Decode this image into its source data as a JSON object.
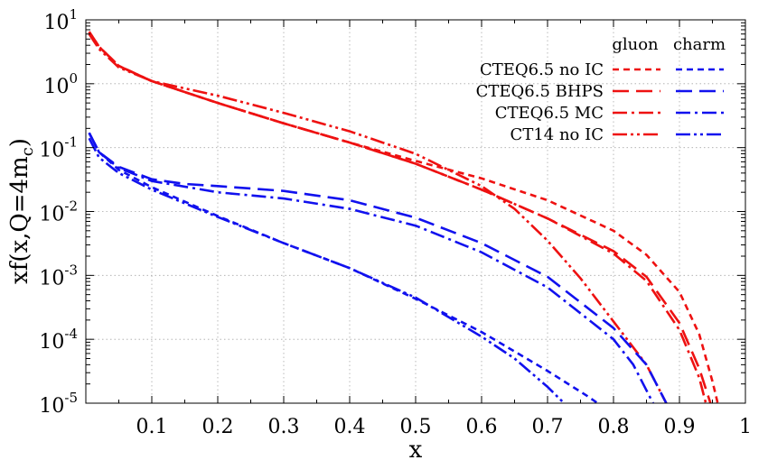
{
  "chart_data": {
    "type": "line",
    "xlabel": "x",
    "ylabel": "xf(x,Q=4m_c)",
    "ylabel_parts": {
      "main": "xf(x,Q=4m",
      "sub": "c",
      "close": ")"
    },
    "xlim": [
      0,
      1
    ],
    "ylim": [
      1e-05,
      10
    ],
    "y_scale": "log",
    "grid": true,
    "x_ticks": [
      0.1,
      0.2,
      0.3,
      0.4,
      0.5,
      0.6,
      0.7,
      0.8,
      0.9,
      1
    ],
    "x_tick_labels": [
      "0.1",
      "0.2",
      "0.3",
      "0.4",
      "0.5",
      "0.6",
      "0.7",
      "0.8",
      "0.9",
      "1"
    ],
    "y_ticks": [
      {
        "value": 1e-05,
        "base": "10",
        "exp": "-5"
      },
      {
        "value": 0.0001,
        "base": "10",
        "exp": "-4"
      },
      {
        "value": 0.001,
        "base": "10",
        "exp": "-3"
      },
      {
        "value": 0.01,
        "base": "10",
        "exp": "-2"
      },
      {
        "value": 0.1,
        "base": "10",
        "exp": "-1"
      },
      {
        "value": 1,
        "base": "10",
        "exp": "0"
      },
      {
        "value": 10,
        "base": "10",
        "exp": "1"
      }
    ],
    "legend": {
      "placement": "top-right",
      "column_headers": [
        "gluon",
        "charm"
      ],
      "rows": [
        {
          "label": "CTEQ6.5 no IC",
          "style": "short-dash"
        },
        {
          "label": "CTEQ6.5 BHPS",
          "style": "long-dash"
        },
        {
          "label": "CTEQ6.5 MC",
          "style": "dash-dot"
        },
        {
          "label": "CT14 no IC",
          "style": "dash-dot-dot"
        }
      ]
    },
    "colors": {
      "gluon": "#ee1111",
      "charm": "#1111ee"
    },
    "series": [
      {
        "parton": "gluon",
        "set": "CTEQ6.5 no IC",
        "style": "short-dash",
        "points": [
          [
            0.005,
            6.5
          ],
          [
            0.02,
            3.8
          ],
          [
            0.05,
            1.9
          ],
          [
            0.1,
            1.1
          ],
          [
            0.2,
            0.5
          ],
          [
            0.3,
            0.24
          ],
          [
            0.4,
            0.12
          ],
          [
            0.5,
            0.062
          ],
          [
            0.6,
            0.033
          ],
          [
            0.7,
            0.015
          ],
          [
            0.8,
            0.005
          ],
          [
            0.85,
            0.0021
          ],
          [
            0.9,
            0.00055
          ],
          [
            0.93,
            0.00012
          ],
          [
            0.95,
            2.2e-05
          ],
          [
            0.958,
            1e-05
          ]
        ]
      },
      {
        "parton": "gluon",
        "set": "CTEQ6.5 BHPS",
        "style": "long-dash",
        "points": [
          [
            0.005,
            6.5
          ],
          [
            0.02,
            3.8
          ],
          [
            0.05,
            1.9
          ],
          [
            0.1,
            1.1
          ],
          [
            0.2,
            0.5
          ],
          [
            0.3,
            0.24
          ],
          [
            0.4,
            0.12
          ],
          [
            0.5,
            0.056
          ],
          [
            0.6,
            0.022
          ],
          [
            0.7,
            0.0078
          ],
          [
            0.8,
            0.0024
          ],
          [
            0.85,
            0.00095
          ],
          [
            0.9,
            0.00018
          ],
          [
            0.93,
            3.5e-05
          ],
          [
            0.947,
            1e-05
          ]
        ]
      },
      {
        "parton": "gluon",
        "set": "CTEQ6.5 MC",
        "style": "dash-dot",
        "points": [
          [
            0.005,
            6.5
          ],
          [
            0.02,
            3.8
          ],
          [
            0.05,
            1.9
          ],
          [
            0.1,
            1.1
          ],
          [
            0.2,
            0.5
          ],
          [
            0.3,
            0.24
          ],
          [
            0.4,
            0.12
          ],
          [
            0.5,
            0.056
          ],
          [
            0.6,
            0.022
          ],
          [
            0.7,
            0.0078
          ],
          [
            0.8,
            0.0022
          ],
          [
            0.85,
            0.00082
          ],
          [
            0.9,
            0.00014
          ],
          [
            0.93,
            2.5e-05
          ],
          [
            0.94,
            1e-05
          ]
        ]
      },
      {
        "parton": "gluon",
        "set": "CT14 no IC",
        "style": "dash-dot-dot",
        "points": [
          [
            0.005,
            6.0
          ],
          [
            0.02,
            3.5
          ],
          [
            0.05,
            1.8
          ],
          [
            0.1,
            1.1
          ],
          [
            0.2,
            0.65
          ],
          [
            0.3,
            0.35
          ],
          [
            0.4,
            0.18
          ],
          [
            0.5,
            0.08
          ],
          [
            0.6,
            0.025
          ],
          [
            0.65,
            0.011
          ],
          [
            0.7,
            0.0035
          ],
          [
            0.75,
            0.0009
          ],
          [
            0.8,
            0.00019
          ],
          [
            0.85,
            4e-05
          ],
          [
            0.88,
            1e-05
          ]
        ]
      },
      {
        "parton": "charm",
        "set": "CTEQ6.5 no IC",
        "style": "short-dash",
        "points": [
          [
            0.005,
            0.17
          ],
          [
            0.02,
            0.085
          ],
          [
            0.05,
            0.045
          ],
          [
            0.1,
            0.024
          ],
          [
            0.2,
            0.0085
          ],
          [
            0.3,
            0.0032
          ],
          [
            0.4,
            0.0013
          ],
          [
            0.5,
            0.00043
          ],
          [
            0.6,
            0.00013
          ],
          [
            0.7,
            3.2e-05
          ],
          [
            0.76,
            1.3e-05
          ],
          [
            0.776,
            1e-05
          ]
        ]
      },
      {
        "parton": "charm",
        "set": "CTEQ6.5 BHPS",
        "style": "long-dash",
        "points": [
          [
            0.005,
            0.17
          ],
          [
            0.02,
            0.085
          ],
          [
            0.05,
            0.05
          ],
          [
            0.1,
            0.032
          ],
          [
            0.15,
            0.027
          ],
          [
            0.2,
            0.025
          ],
          [
            0.3,
            0.021
          ],
          [
            0.4,
            0.015
          ],
          [
            0.5,
            0.008
          ],
          [
            0.6,
            0.0032
          ],
          [
            0.7,
            0.00095
          ],
          [
            0.8,
            0.00015
          ],
          [
            0.85,
            4e-05
          ],
          [
            0.88,
            1e-05
          ]
        ]
      },
      {
        "parton": "charm",
        "set": "CTEQ6.5 MC",
        "style": "dash-dot",
        "points": [
          [
            0.005,
            0.17
          ],
          [
            0.02,
            0.085
          ],
          [
            0.05,
            0.048
          ],
          [
            0.1,
            0.03
          ],
          [
            0.2,
            0.02
          ],
          [
            0.3,
            0.016
          ],
          [
            0.4,
            0.011
          ],
          [
            0.5,
            0.006
          ],
          [
            0.6,
            0.0023
          ],
          [
            0.7,
            0.00065
          ],
          [
            0.8,
            0.0001
          ],
          [
            0.83,
            4e-05
          ],
          [
            0.86,
            1e-05
          ]
        ]
      },
      {
        "parton": "charm",
        "set": "CT14 no IC",
        "style": "dash-dot-dot",
        "points": [
          [
            0.005,
            0.14
          ],
          [
            0.02,
            0.07
          ],
          [
            0.05,
            0.04
          ],
          [
            0.1,
            0.022
          ],
          [
            0.2,
            0.0082
          ],
          [
            0.3,
            0.0032
          ],
          [
            0.4,
            0.0013
          ],
          [
            0.5,
            0.00045
          ],
          [
            0.6,
            0.00011
          ],
          [
            0.65,
            5e-05
          ],
          [
            0.7,
            1.8e-05
          ],
          [
            0.725,
            1e-05
          ]
        ]
      }
    ]
  }
}
